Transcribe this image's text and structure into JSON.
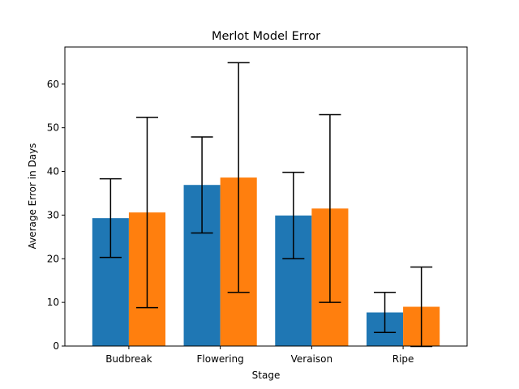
{
  "chart_data": {
    "type": "bar",
    "title": "Merlot Model Error",
    "xlabel": "Stage",
    "ylabel": "Average Error in Days",
    "categories": [
      "Budbreak",
      "Flowering",
      "Veraison",
      "Ripe"
    ],
    "series": [
      {
        "color": "#1f77b4",
        "values": [
          29.3,
          36.9,
          29.9,
          7.7
        ],
        "errors": [
          9.0,
          11.0,
          9.9,
          4.6
        ]
      },
      {
        "color": "#ff7f0e",
        "values": [
          30.6,
          38.6,
          31.5,
          9.0
        ],
        "errors": [
          21.8,
          26.3,
          21.5,
          9.1
        ]
      }
    ],
    "ylim": [
      0,
      68.5
    ],
    "yticks": [
      0,
      10,
      20,
      30,
      40,
      50,
      60
    ],
    "grid": false
  }
}
